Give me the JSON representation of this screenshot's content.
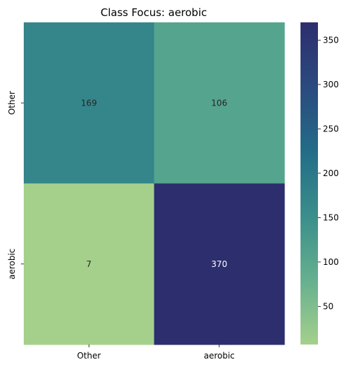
{
  "chart_data": {
    "type": "heatmap",
    "title": "Class Focus: aerobic",
    "x_categories": [
      "Other",
      "aerobic"
    ],
    "y_categories": [
      "Other",
      "aerobic"
    ],
    "values": [
      [
        169,
        106
      ],
      [
        7,
        370
      ]
    ],
    "colorbar": {
      "min": 7,
      "max": 370,
      "ticks": [
        50,
        100,
        150,
        200,
        250,
        300,
        350
      ],
      "colormap": "crest",
      "colors": [
        "#a5d08c",
        "#65b08f",
        "#3a8e8b",
        "#236c88",
        "#2b4a7e",
        "#2d2e6e"
      ]
    },
    "xlabel": "",
    "ylabel": ""
  }
}
